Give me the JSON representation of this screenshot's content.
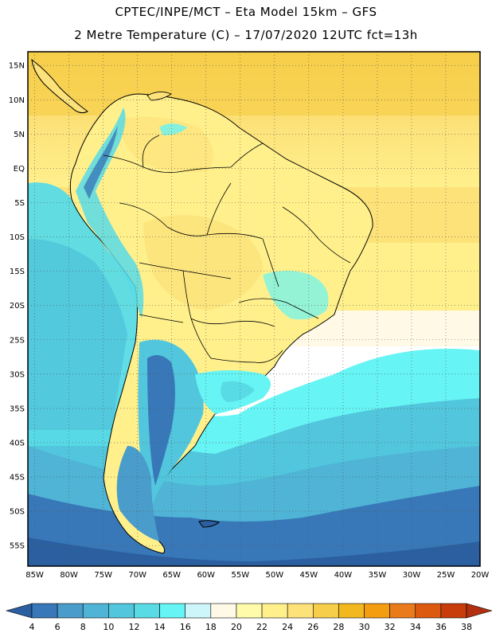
{
  "header": {
    "line1": "CPTEC/INPE/MCT –  Eta Model 15km – GFS",
    "line2": "2 Metre Temperature (C) – 17/07/2020 12UTC fct=13h"
  },
  "map": {
    "lat_labels": [
      "15N",
      "10N",
      "5N",
      "EQ",
      "5S",
      "10S",
      "15S",
      "20S",
      "25S",
      "30S",
      "35S",
      "40S",
      "45S",
      "50S",
      "55S"
    ],
    "lon_labels": [
      "85W",
      "80W",
      "75W",
      "70W",
      "65W",
      "60W",
      "55W",
      "50W",
      "45W",
      "40W",
      "35W",
      "30W",
      "25W",
      "20W"
    ],
    "lat_range": [
      17,
      -58
    ],
    "lon_range": [
      -86,
      -20
    ],
    "grid": true
  },
  "colorbar": {
    "colors": [
      "#2b5fa0",
      "#3878b8",
      "#4a9ccb",
      "#4fb4d6",
      "#52c6dc",
      "#59dbe6",
      "#66f4f4",
      "#cdf6fb",
      "#fff9e6",
      "#fffbaa",
      "#fff08c",
      "#fde27a",
      "#f6ce4a",
      "#f3b820",
      "#f49d10",
      "#ea7b1a",
      "#dc5a10",
      "#c83b0a",
      "#b03010"
    ],
    "labels": [
      "4",
      "6",
      "8",
      "10",
      "12",
      "14",
      "16",
      "18",
      "20",
      "22",
      "24",
      "26",
      "28",
      "30",
      "32",
      "34",
      "36",
      "38"
    ]
  }
}
